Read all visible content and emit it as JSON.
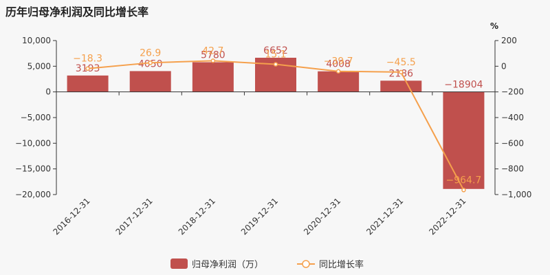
{
  "chart_data": {
    "title": "历年归母净利润及同比增长率",
    "type": "bar",
    "categories": [
      "2016-12-31",
      "2017-12-31",
      "2018-12-31",
      "2019-12-31",
      "2020-12-31",
      "2021-12-31",
      "2022-12-31"
    ],
    "series": [
      {
        "name": "归母净利润（万）",
        "type": "bar",
        "axis": "left",
        "color": "#c0504d",
        "values": [
          3193,
          4050,
          5780,
          6652,
          4008,
          2186,
          -18904
        ],
        "labels": [
          "3193",
          "4050",
          "5780",
          "6652",
          "4008",
          "2186",
          "−18904"
        ]
      },
      {
        "name": "同比增长率",
        "type": "line",
        "axis": "right",
        "color": "#f5a04c",
        "values": [
          -18.3,
          26.9,
          42.7,
          15.1,
          -39.7,
          -45.5,
          -964.7
        ],
        "labels": [
          "−18.3",
          "26.9",
          "42.7",
          "15.1",
          "−39.7",
          "−45.5",
          "−964.7"
        ]
      }
    ],
    "left_axis": {
      "ylim": [
        -20000,
        10000
      ],
      "ticks": [
        10000,
        5000,
        0,
        -5000,
        -10000,
        -15000,
        -20000
      ],
      "tick_labels": [
        "10,000",
        "5,000",
        "0",
        "−5,000",
        "−10,000",
        "−15,000",
        "−20,000"
      ]
    },
    "right_axis": {
      "unit": "%",
      "ylim": [
        -1000,
        200
      ],
      "ticks": [
        200,
        0,
        -200,
        -400,
        -600,
        -800,
        -1000
      ],
      "tick_labels": [
        "200",
        "0",
        "−200",
        "−400",
        "−600",
        "−800",
        "−1,000"
      ]
    },
    "grid": false,
    "legend_position": "bottom-center"
  }
}
